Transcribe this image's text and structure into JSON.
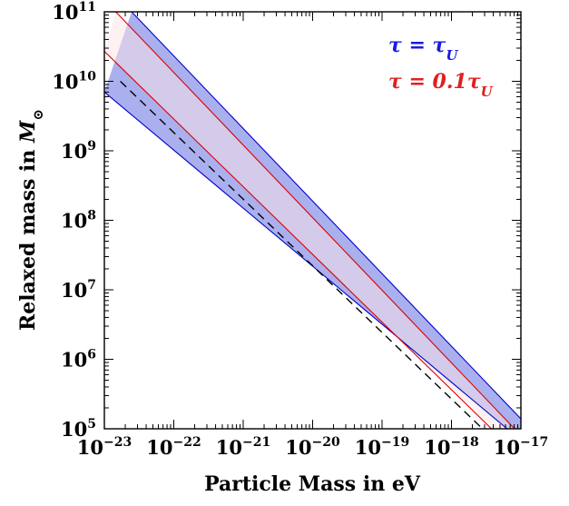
{
  "chart_data": {
    "type": "area",
    "xlabel": "Particle Mass in eV",
    "ylabel_prefix": "Relaxed mass in ",
    "ylabel_symbol": "M",
    "ylabel_subscript": "⊙",
    "x_scale": "log",
    "y_scale": "log",
    "xlim": [
      1e-23,
      1e-17
    ],
    "ylim": [
      100000.0,
      100000000000.0
    ],
    "grid": false,
    "legend_position": "top-right",
    "x_ticks": [
      {
        "base": "10",
        "exp": "−23"
      },
      {
        "base": "10",
        "exp": "−22"
      },
      {
        "base": "10",
        "exp": "−21"
      },
      {
        "base": "10",
        "exp": "−20"
      },
      {
        "base": "10",
        "exp": "−19"
      },
      {
        "base": "10",
        "exp": "−18"
      },
      {
        "base": "10",
        "exp": "−17"
      }
    ],
    "y_ticks": [
      {
        "base": "10",
        "exp": "5"
      },
      {
        "base": "10",
        "exp": "6"
      },
      {
        "base": "10",
        "exp": "7"
      },
      {
        "base": "10",
        "exp": "8"
      },
      {
        "base": "10",
        "exp": "9"
      },
      {
        "base": "10",
        "exp": "10"
      },
      {
        "base": "10",
        "exp": "11"
      }
    ],
    "series": [
      {
        "name": "τ = τU",
        "legend_main": "τ = τ",
        "legend_sub": "U",
        "color": "#0000cc",
        "fill": "#aab0ee",
        "upper": {
          "x": [
            2.47e-23,
            1.37e-17
          ],
          "y": [
            100000000000.0,
            100000.0
          ]
        },
        "lower": {
          "x": [
            1e-23,
            6.33e-18
          ],
          "y": [
            7000000000.0,
            100000.0
          ]
        }
      },
      {
        "name": "τ = 0.1τU",
        "legend_main": "τ = 0.1τ",
        "legend_sub": "U",
        "color": "#dd0000",
        "fill": "#fde3e3",
        "upper": {
          "x": [
            1.46e-23,
            8.1e-18
          ],
          "y": [
            100000000000.0,
            100000.0
          ]
        },
        "lower": {
          "x": [
            1e-23,
            3.77e-18
          ],
          "y": [
            27000000000.0,
            100000.0
          ]
        }
      }
    ],
    "reference_line": {
      "style": "dashed",
      "color": "#000000",
      "x": [
        1.7e-23,
        2.8e-18
      ],
      "y": [
        10000000000.0,
        100000.0
      ]
    }
  }
}
